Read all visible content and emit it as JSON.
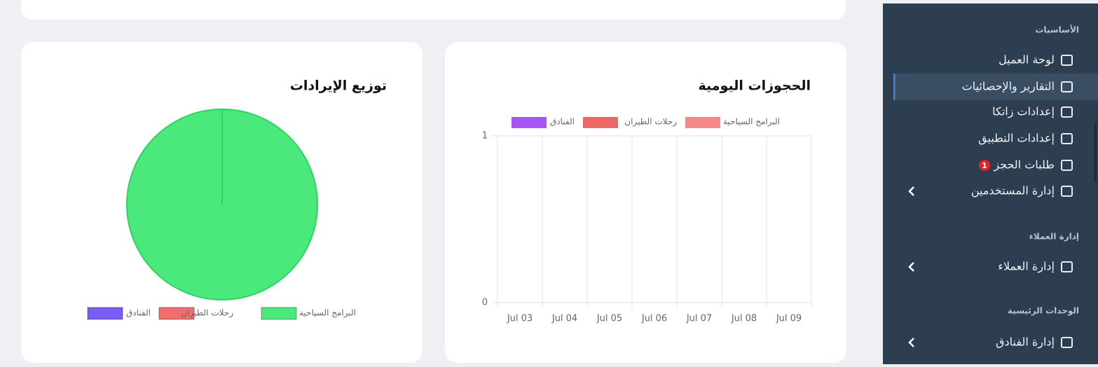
{
  "sidebar": {
    "sections": [
      {
        "title": "الأساسيات",
        "items": [
          "لوحة العميل",
          "التقارير والإحصائيات",
          "إعدادات زاتكا",
          "إعدادات التطبيق",
          "طلبات الحجز",
          "إدارة المستخدمين"
        ]
      },
      {
        "title": "إدارة العملاء",
        "items": [
          "إدارة العملاء"
        ]
      },
      {
        "title": "الوحدات الرئيسية",
        "items": [
          "إدارة الفنادق"
        ]
      }
    ],
    "badge": "1"
  },
  "chart_data": [
    {
      "type": "bar",
      "title": "الحجوزات اليومية",
      "categories": [
        "Jul 03",
        "Jul 04",
        "Jul 05",
        "Jul 06",
        "Jul 07",
        "Jul 08",
        "Jul 09"
      ],
      "series": [
        {
          "name": "الفنادق",
          "color": "#a855f7",
          "values": [
            0,
            0,
            0,
            0,
            0,
            0,
            0
          ]
        },
        {
          "name": "رحلات الطيران",
          "color": "#ef6666",
          "values": [
            0,
            0,
            0,
            0,
            0,
            0,
            0
          ]
        },
        {
          "name": "البرامج السياحية",
          "color": "#f58888",
          "values": [
            0,
            0,
            0,
            0,
            0,
            0,
            0
          ]
        }
      ],
      "ylim": [
        0,
        1
      ],
      "yticks": [
        0,
        1
      ],
      "grid": true,
      "legend": "top"
    },
    {
      "type": "pie",
      "title": "توزيع الإيرادات",
      "categories": [
        "الفنادق",
        "رحلات الطيران",
        "البرامج السياحية"
      ],
      "values": [
        0,
        0,
        100
      ],
      "colors": [
        "#7b5cf5",
        "#f26d6d",
        "#4be87b"
      ],
      "legend": "bottom"
    }
  ]
}
